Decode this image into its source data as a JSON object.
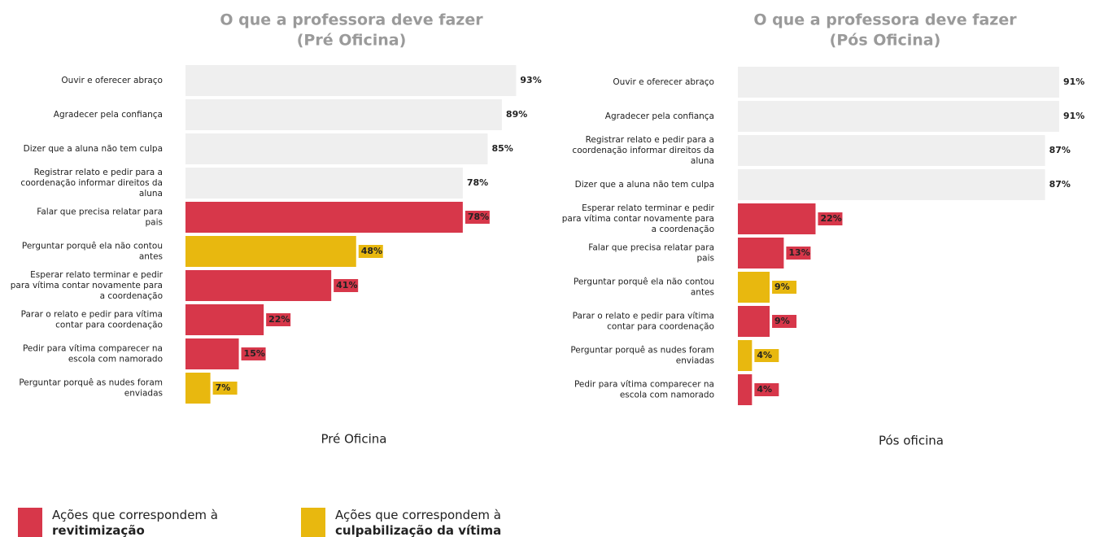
{
  "chart_data": [
    {
      "type": "hbar",
      "title": [
        "O que a professora deve fazer",
        "(Pré Oficina)"
      ],
      "categories": [
        "Ouvir e oferecer abraço",
        "Agradecer pela confiança",
        "Dizer que a aluna não tem culpa",
        "Registrar relato e pedir para a coordenação informar direitos da aluna",
        "Falar que precisa relatar para pais",
        "Perguntar porquê ela não contou antes",
        "Esperar relato terminar e pedir para vítima contar novamente para a coordenação",
        "Parar o relato e pedir para vítima contar para coordenação",
        "Pedir para vítima comparecer na escola com namorado",
        "Perguntar porquê as nudes foram enviadas"
      ],
      "values": [
        93,
        89,
        85,
        78,
        78,
        48,
        41,
        22,
        15,
        7
      ],
      "value_labels": [
        "93%",
        "89%",
        "85%",
        "78%",
        "78%",
        "48%",
        "41%",
        "22%",
        "15%",
        "7%"
      ],
      "colors": [
        "#efefef",
        "#efefef",
        "#efefef",
        "#efefef",
        "#d7374a",
        "#e8b80f",
        "#d7374a",
        "#d7374a",
        "#d7374a",
        "#e8b80f"
      ],
      "xlabel": "Pré Oficina"
    },
    {
      "type": "hbar",
      "title": [
        "O que a professora deve fazer",
        "(Pós Oficina)"
      ],
      "categories": [
        "Ouvir e oferecer abraço",
        "Agradecer pela confiança",
        "Registrar relato e pedir para a coordenação informar direitos da aluna",
        "Dizer que a aluna não tem culpa",
        "Esperar relato terminar e pedir para vítima contar novamente para a coordenação",
        "Falar que precisa relatar para pais",
        "Perguntar porquê ela não contou antes",
        "Parar o relato e pedir para vítima contar para coordenação",
        "Perguntar porquê as nudes foram enviadas",
        "Pedir para vítima comparecer na escola com namorado"
      ],
      "values": [
        91,
        91,
        87,
        87,
        22,
        13,
        9,
        9,
        4,
        4
      ],
      "value_labels": [
        "91%",
        "91%",
        "87%",
        "87%",
        "22%",
        "13%",
        "9%",
        "9%",
        "4%",
        "4%"
      ],
      "colors": [
        "#efefef",
        "#efefef",
        "#efefef",
        "#efefef",
        "#d7374a",
        "#d7374a",
        "#e8b80f",
        "#d7374a",
        "#e8b80f",
        "#d7374a"
      ],
      "xlabel": "Pós oficina"
    }
  ],
  "legend": [
    {
      "color": "#d7374a",
      "text": "Ações que correspondem à",
      "bold": "revitimização"
    },
    {
      "color": "#e8b80f",
      "text": "Ações que correspondem à",
      "bold": "culpabilização da vítima"
    }
  ]
}
